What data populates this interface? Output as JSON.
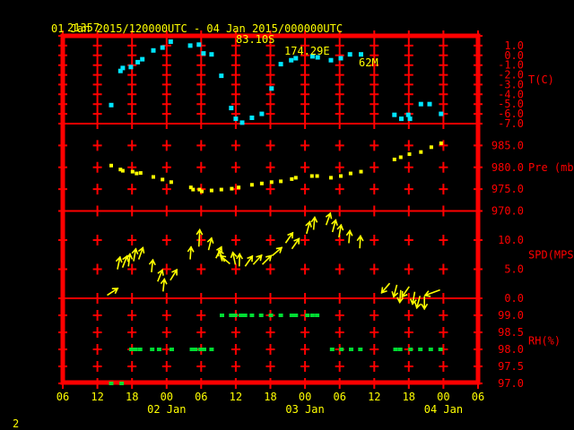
{
  "header": {
    "station_id": "21357",
    "latitude": "83.10S",
    "longitude": "174.29E",
    "elevation": "62M",
    "time_range": "01 Jan 2015/120000UTC - 04 Jan 2015/000000UTC"
  },
  "footer": {
    "page_number": "2"
  },
  "colors": {
    "background": "#000000",
    "frame": "#ff0000",
    "axis_text": "#ff0000",
    "time_text": "#ffff00",
    "temperature": "#00e5ff",
    "pressure": "#ffff00",
    "wind": "#ffff00",
    "humidity": "#00dd33"
  },
  "chart_data": {
    "type": "scatter",
    "title": "Surface station meteogram",
    "x_axis": {
      "span_hours": 72,
      "tick_hours": [
        0,
        6,
        12,
        18,
        24,
        30,
        36,
        42,
        48,
        54,
        60,
        66,
        72
      ],
      "tick_labels": [
        "06",
        "12",
        "18",
        "00",
        "06",
        "12",
        "18",
        "00",
        "06",
        "12",
        "18",
        "00",
        "06"
      ],
      "date_labels": [
        {
          "label": "02 Jan",
          "hour": 18
        },
        {
          "label": "03 Jan",
          "hour": 42
        },
        {
          "label": "04 Jan",
          "hour": 66
        }
      ]
    },
    "panels": [
      {
        "name": "temperature",
        "axis_label": "T(C)",
        "axis_label_at": -2.5,
        "color": "#00e5ff",
        "marker_size": [
          5,
          5
        ],
        "value_top": 2.0,
        "value_bottom": -7.0,
        "grid_step": 1.0,
        "tick_labels": [
          [
            "1.0",
            1.0
          ],
          [
            "0.0",
            0.0
          ],
          [
            "-1.0",
            -1.0
          ],
          [
            "-2.0",
            -2.0
          ],
          [
            "-3.0",
            -3.0
          ],
          [
            "-4.0",
            -4.0
          ],
          [
            "-5.0",
            -5.0
          ],
          [
            "-6.0",
            -6.0
          ],
          [
            "-7.0",
            -7.0
          ]
        ],
        "points": [
          [
            8.4,
            -5.1
          ],
          [
            10.0,
            -1.6
          ],
          [
            10.4,
            -1.3
          ],
          [
            11.8,
            -1.2
          ],
          [
            13.0,
            -0.7
          ],
          [
            13.8,
            -0.4
          ],
          [
            15.7,
            0.5
          ],
          [
            17.3,
            0.8
          ],
          [
            18.7,
            1.4
          ],
          [
            22.1,
            1.0
          ],
          [
            23.6,
            1.1
          ],
          [
            24.4,
            0.2
          ],
          [
            25.8,
            0.1
          ],
          [
            27.5,
            -2.1
          ],
          [
            29.2,
            -5.4
          ],
          [
            30.0,
            -6.5
          ],
          [
            31.1,
            -6.9
          ],
          [
            32.8,
            -6.4
          ],
          [
            34.5,
            -6.0
          ],
          [
            36.2,
            -3.4
          ],
          [
            37.8,
            -0.9
          ],
          [
            39.6,
            -0.5
          ],
          [
            40.4,
            -0.3
          ],
          [
            43.3,
            -0.1
          ],
          [
            44.2,
            -0.2
          ],
          [
            46.5,
            -0.5
          ],
          [
            48.2,
            -0.3
          ],
          [
            49.8,
            0.1
          ],
          [
            51.7,
            0.1
          ],
          [
            57.5,
            -6.1
          ],
          [
            58.7,
            -6.5
          ],
          [
            59.9,
            -6.1
          ],
          [
            60.2,
            -6.5
          ],
          [
            62.1,
            -5.0
          ],
          [
            63.6,
            -5.0
          ],
          [
            65.6,
            -6.0
          ]
        ]
      },
      {
        "name": "pressure",
        "axis_label": "Pre (mb)",
        "axis_label_at": 980,
        "color": "#ffff00",
        "marker_size": [
          4,
          4
        ],
        "value_top": 990,
        "value_bottom": 970,
        "grid_step": 5,
        "tick_labels": [
          [
            "985.0",
            985
          ],
          [
            "980.0",
            980
          ],
          [
            "975.0",
            975
          ],
          [
            "970.0",
            970
          ]
        ],
        "points": [
          [
            8.4,
            980.4
          ],
          [
            10.0,
            979.5
          ],
          [
            10.4,
            979.2
          ],
          [
            12.1,
            979.0
          ],
          [
            12.8,
            978.6
          ],
          [
            13.5,
            978.7
          ],
          [
            15.7,
            977.8
          ],
          [
            17.3,
            977.2
          ],
          [
            18.8,
            976.6
          ],
          [
            22.2,
            975.4
          ],
          [
            22.6,
            974.9
          ],
          [
            23.7,
            974.9
          ],
          [
            24.1,
            974.5
          ],
          [
            25.8,
            974.7
          ],
          [
            27.5,
            974.9
          ],
          [
            29.3,
            975.1
          ],
          [
            30.5,
            975.4
          ],
          [
            32.8,
            976.0
          ],
          [
            34.5,
            976.3
          ],
          [
            36.2,
            976.6
          ],
          [
            37.8,
            976.8
          ],
          [
            39.7,
            977.3
          ],
          [
            40.4,
            977.6
          ],
          [
            43.2,
            978.0
          ],
          [
            44.1,
            978.0
          ],
          [
            46.5,
            977.6
          ],
          [
            48.2,
            978.0
          ],
          [
            49.9,
            978.6
          ],
          [
            51.7,
            979.0
          ],
          [
            57.5,
            981.8
          ],
          [
            58.6,
            982.3
          ],
          [
            60.1,
            983.0
          ],
          [
            62.1,
            983.5
          ],
          [
            63.9,
            984.6
          ],
          [
            65.6,
            985.5
          ]
        ]
      },
      {
        "name": "wind_speed",
        "axis_label": "SPD(MPS)",
        "axis_label_at": 7.5,
        "color": "#ffff00",
        "value_top": 15,
        "value_bottom": 0,
        "grid_step": 5,
        "tick_labels": [
          [
            "10.0",
            10
          ],
          [
            "5.0",
            5
          ],
          [
            "0.0",
            0
          ]
        ],
        "arrows": [
          [
            7.8,
            0.6,
            33
          ],
          [
            9.5,
            5.1,
            78
          ],
          [
            10.4,
            5.4,
            68
          ],
          [
            11.4,
            5.6,
            83
          ],
          [
            12.3,
            6.5,
            80
          ],
          [
            13.2,
            6.8,
            70
          ],
          [
            15.4,
            4.6,
            84
          ],
          [
            16.5,
            3.0,
            68
          ],
          [
            17.4,
            1.3,
            84
          ],
          [
            18.7,
            3.2,
            58
          ],
          [
            22.1,
            6.8,
            86
          ],
          [
            23.6,
            9.0,
            87,
            18
          ],
          [
            25.3,
            8.4,
            76
          ],
          [
            26.6,
            7.0,
            64
          ],
          [
            28.0,
            6.4,
            118
          ],
          [
            28.9,
            6.0,
            140
          ],
          [
            29.9,
            5.9,
            102
          ],
          [
            30.6,
            5.6,
            88
          ],
          [
            31.7,
            5.6,
            55
          ],
          [
            33.1,
            5.9,
            48
          ],
          [
            34.7,
            5.9,
            45
          ],
          [
            36.4,
            7.4,
            40
          ],
          [
            38.7,
            9.6,
            55
          ],
          [
            39.8,
            8.6,
            55
          ],
          [
            42.3,
            11.2,
            75
          ],
          [
            43.5,
            11.9,
            85
          ],
          [
            45.7,
            12.7,
            70
          ],
          [
            46.8,
            11.5,
            75
          ],
          [
            47.9,
            10.6,
            80
          ],
          [
            49.6,
            9.6,
            85
          ],
          [
            51.5,
            8.7,
            87
          ],
          [
            56.6,
            2.5,
            230
          ],
          [
            57.9,
            2.2,
            255
          ],
          [
            58.6,
            1.3,
            265
          ],
          [
            60.0,
            1.9,
            235
          ],
          [
            61.0,
            1.0,
            260
          ],
          [
            61.9,
            0.3,
            255
          ],
          [
            62.7,
            0.2,
            270
          ],
          [
            65.3,
            1.4,
            200,
            17
          ]
        ]
      },
      {
        "name": "relative_humidity",
        "axis_label": "RH(%)",
        "axis_label_at": 98.25,
        "color": "#00dd33",
        "marker_size": [
          5,
          4
        ],
        "value_top": 99.5,
        "value_bottom": 97.0,
        "grid_step": 0.5,
        "tick_labels": [
          [
            "99.0",
            99.0
          ],
          [
            "98.5",
            98.5
          ],
          [
            "98.0",
            98.0
          ],
          [
            "97.5",
            97.5
          ],
          [
            "97.0",
            97.0
          ]
        ],
        "points": [
          [
            8.4,
            97.0
          ],
          [
            10.2,
            97.0
          ],
          [
            11.9,
            98.0
          ],
          [
            12.6,
            98.0
          ],
          [
            13.4,
            98.0
          ],
          [
            15.5,
            98.0
          ],
          [
            16.7,
            98.0
          ],
          [
            18.9,
            98.0
          ],
          [
            22.4,
            98.0
          ],
          [
            23.0,
            98.0
          ],
          [
            23.9,
            98.0
          ],
          [
            24.5,
            98.0
          ],
          [
            25.8,
            98.0
          ],
          [
            27.6,
            99.0
          ],
          [
            29.2,
            99.0
          ],
          [
            29.9,
            99.0
          ],
          [
            30.9,
            99.0
          ],
          [
            31.6,
            99.0
          ],
          [
            32.8,
            99.0
          ],
          [
            34.4,
            99.0
          ],
          [
            36.1,
            99.0
          ],
          [
            37.8,
            99.0
          ],
          [
            39.7,
            99.0
          ],
          [
            40.4,
            99.0
          ],
          [
            42.4,
            99.0
          ],
          [
            43.3,
            99.0
          ],
          [
            44.1,
            99.0
          ],
          [
            46.7,
            98.0
          ],
          [
            48.3,
            98.0
          ],
          [
            50.0,
            98.0
          ],
          [
            51.6,
            98.0
          ],
          [
            57.7,
            98.0
          ],
          [
            58.5,
            98.0
          ],
          [
            60.3,
            98.0
          ],
          [
            62.0,
            98.0
          ],
          [
            63.8,
            98.0
          ],
          [
            65.5,
            98.0
          ]
        ]
      }
    ]
  }
}
